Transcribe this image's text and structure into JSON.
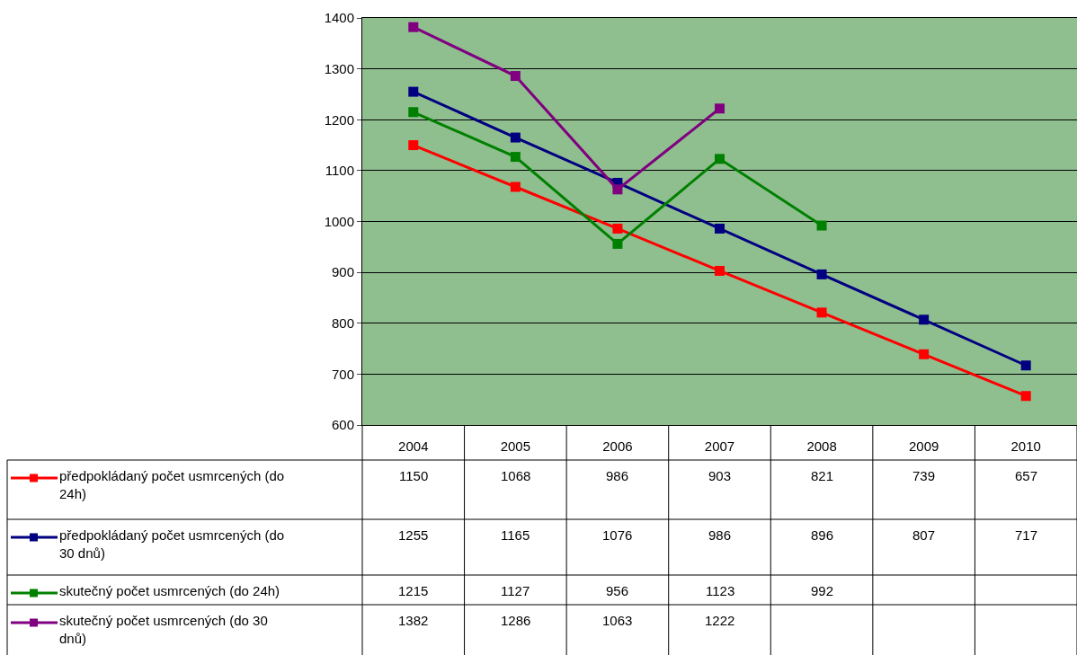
{
  "chart_data": {
    "type": "line",
    "categories": [
      "2004",
      "2005",
      "2006",
      "2007",
      "2008",
      "2009",
      "2010"
    ],
    "series": [
      {
        "name": "předpokládaný počet usmrcených (do 24h)",
        "color": "#ff0000",
        "values": [
          1150,
          1068,
          986,
          903,
          821,
          739,
          657
        ]
      },
      {
        "name": "předpokládaný počet usmrcených (do 30 dnů)",
        "color": "#000080",
        "values": [
          1255,
          1165,
          1076,
          986,
          896,
          807,
          717
        ]
      },
      {
        "name": "skutečný počet usmrcených (do 24h)",
        "color": "#008000",
        "values": [
          1215,
          1127,
          956,
          1123,
          992,
          null,
          null
        ]
      },
      {
        "name": "skutečný počet usmrcených (do 30 dnů)",
        "color": "#800080",
        "values": [
          1382,
          1286,
          1063,
          1222,
          null,
          null,
          null
        ]
      }
    ],
    "ylim": [
      600,
      1400
    ],
    "yticks": [
      600,
      700,
      800,
      900,
      1000,
      1100,
      1200,
      1300,
      1400
    ],
    "grid": "y",
    "legend": "bottom",
    "marker": "square",
    "line_style": "solid",
    "data_labels": true
  }
}
